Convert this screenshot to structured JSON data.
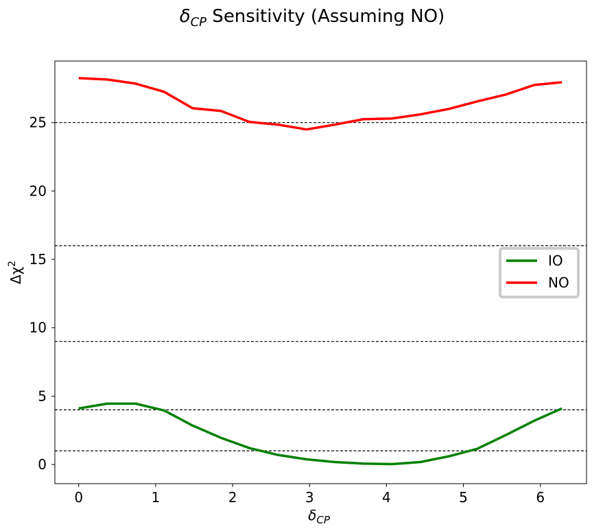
{
  "chart_data": {
    "type": "line",
    "title": {
      "symbol": "δ",
      "subscript": "CP",
      "text": " Sensitivity (Assuming NO)"
    },
    "xlabel": {
      "symbol": "δ",
      "subscript": "CP"
    },
    "ylabel": {
      "symbol": "Δχ",
      "superscript": "2"
    },
    "xlim": [
      -0.31,
      6.6
    ],
    "ylim": [
      -1.4,
      29.5
    ],
    "xticks": [
      0,
      1,
      2,
      3,
      4,
      5,
      6
    ],
    "yticks": [
      0,
      5,
      10,
      15,
      20,
      25
    ],
    "reference_lines": [
      1,
      4,
      9,
      16,
      25
    ],
    "legend_position": "center-right",
    "series": [
      {
        "name": "IO",
        "color": "#008000",
        "x": [
          0,
          0.37,
          0.74,
          1.11,
          1.48,
          1.85,
          2.22,
          2.59,
          2.96,
          3.33,
          3.7,
          4.07,
          4.44,
          4.81,
          5.18,
          5.55,
          5.92,
          6.28
        ],
        "y": [
          4.1,
          4.45,
          4.45,
          3.95,
          2.85,
          1.95,
          1.2,
          0.7,
          0.38,
          0.18,
          0.07,
          0.03,
          0.18,
          0.6,
          1.15,
          2.15,
          3.2,
          4.1
        ]
      },
      {
        "name": "NO",
        "color": "#ff0000",
        "x": [
          0,
          0.37,
          0.74,
          1.11,
          1.48,
          1.85,
          2.22,
          2.59,
          2.96,
          3.33,
          3.7,
          4.07,
          4.44,
          4.81,
          5.18,
          5.55,
          5.92,
          6.28
        ],
        "y": [
          28.25,
          28.15,
          27.85,
          27.25,
          26.05,
          25.85,
          25.05,
          24.85,
          24.5,
          24.85,
          25.25,
          25.3,
          25.6,
          26.0,
          26.55,
          27.05,
          27.75,
          27.95
        ]
      }
    ]
  }
}
